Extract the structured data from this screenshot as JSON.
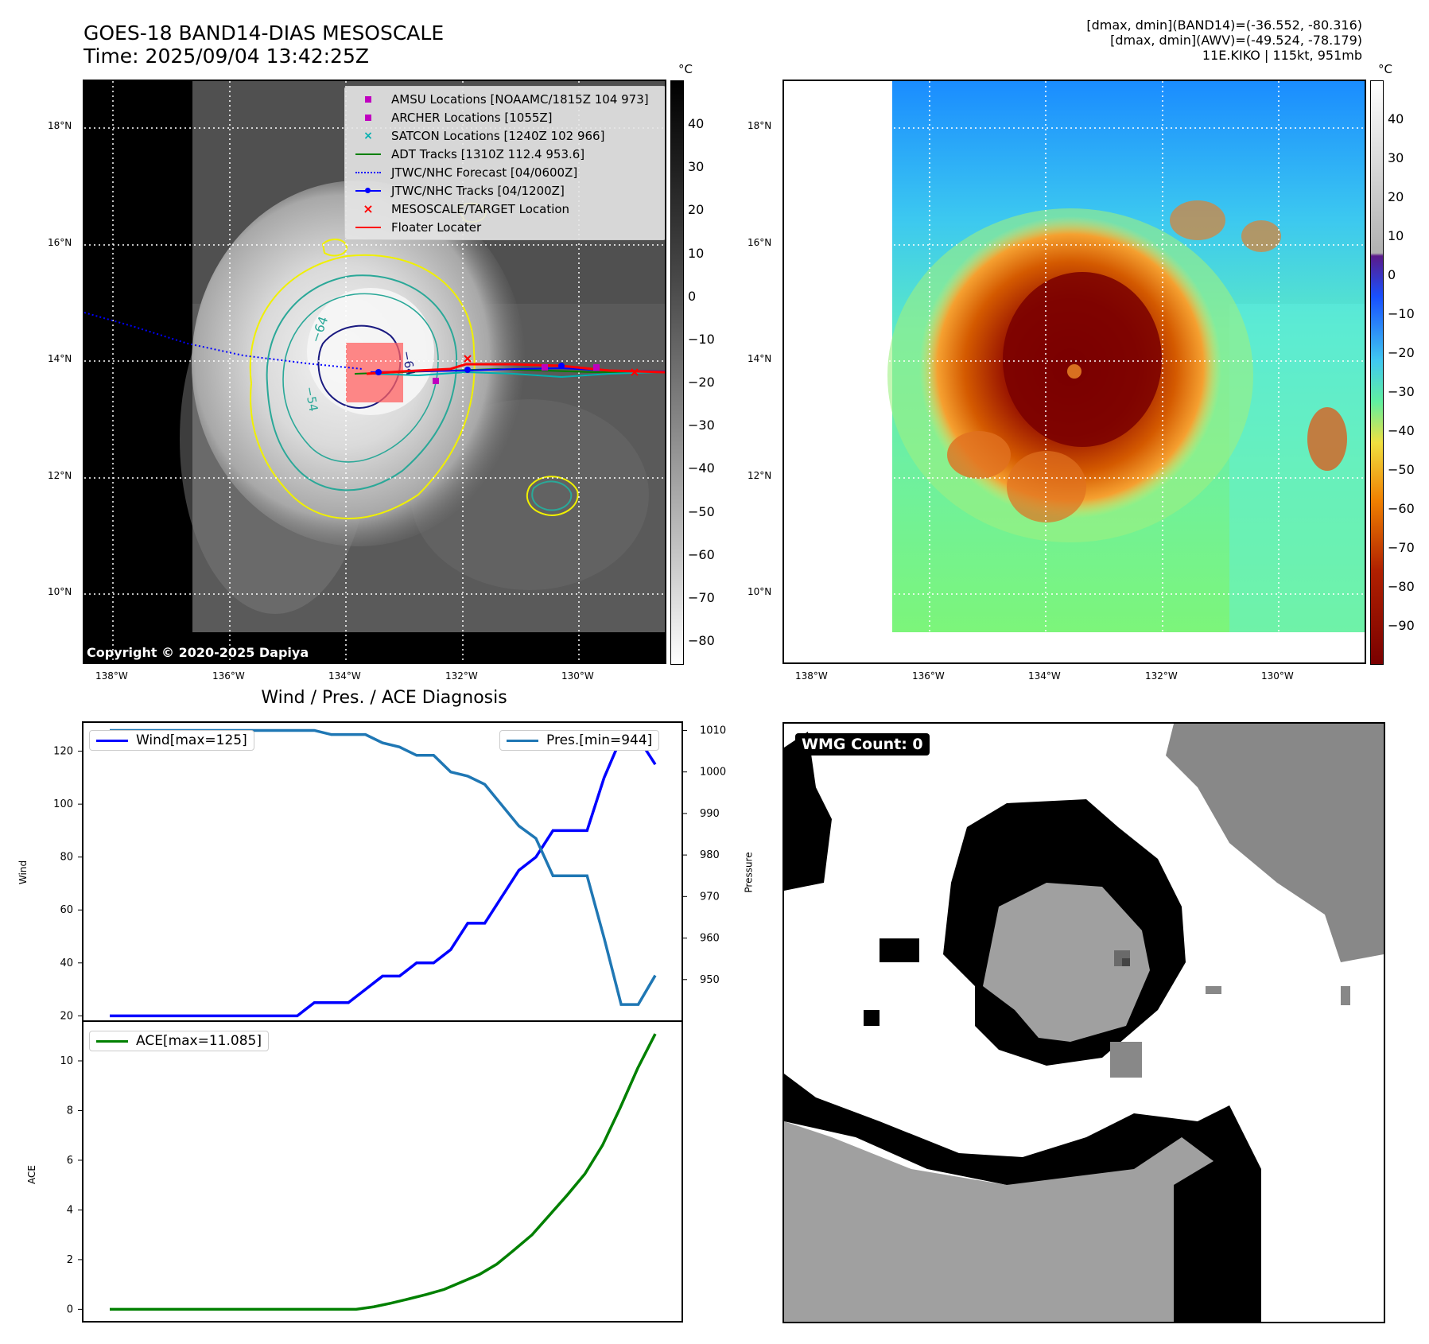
{
  "ir_panel": {
    "title_line1": "GOES-18 BAND14-DIAS MESOSCALE",
    "title_line2": "Time: 2025/09/04 13:42:25Z",
    "copyright": "Copyright © 2020-2025 Dapiya",
    "colorbar_unit": "°C",
    "colorbar_ticks": [
      "40",
      "30",
      "20",
      "10",
      "0",
      "−10",
      "−20",
      "−30",
      "−40",
      "−50",
      "−60",
      "−70",
      "−80"
    ],
    "lat_ticks": [
      "18°N",
      "16°N",
      "14°N",
      "12°N",
      "10°N"
    ],
    "lon_ticks": [
      "138°W",
      "136°W",
      "134°W",
      "132°W",
      "130°W"
    ],
    "contour_labels": [
      "−64",
      "−64",
      "−54"
    ],
    "legend": [
      {
        "label": "AMSU Locations [NOAAMC/1815Z 104 973]",
        "symbol": "square",
        "color": "#c000c0"
      },
      {
        "label": "ARCHER Locations [1055Z]",
        "symbol": "square",
        "color": "#c000c0"
      },
      {
        "label": "SATCON Locations [1240Z 102 966]",
        "symbol": "x",
        "color": "#00b0b0"
      },
      {
        "label": "ADT Tracks [1310Z 112.4 953.6]",
        "symbol": "line",
        "color": "#008000"
      },
      {
        "label": "JTWC/NHC Forecast [04/0600Z]",
        "symbol": "dotted",
        "color": "#0000ff"
      },
      {
        "label": "JTWC/NHC Tracks [04/1200Z]",
        "symbol": "dotline",
        "color": "#0000ff"
      },
      {
        "label": "MESOSCALE/TARGET Location",
        "symbol": "x",
        "color": "#ff0000"
      },
      {
        "label": "Floater Locater",
        "symbol": "line",
        "color": "#ff0000"
      }
    ]
  },
  "awv_panel": {
    "stats_line1": "[dmax, dmin](BAND14)=(-36.552, -80.316)",
    "stats_line2": "[dmax, dmin](AWV)=(-49.524, -78.179)",
    "stats_line3": "11E.KIKO | 115kt, 951mb",
    "colorbar_unit": "°C",
    "colorbar_ticks": [
      "40",
      "30",
      "20",
      "10",
      "0",
      "−10",
      "−20",
      "−30",
      "−40",
      "−50",
      "−60",
      "−70",
      "−80",
      "−90"
    ],
    "lat_ticks": [
      "18°N",
      "16°N",
      "14°N",
      "12°N",
      "10°N"
    ],
    "lon_ticks": [
      "138°W",
      "136°W",
      "134°W",
      "132°W",
      "130°W"
    ]
  },
  "wmg_panel": {
    "label": "WMG Count: 0"
  },
  "chart_data": [
    {
      "type": "line",
      "title": "Wind / Pres. / ACE Diagnosis",
      "ylabel": "Wind",
      "y2label": "Pressure",
      "ylim": [
        18,
        131
      ],
      "y2lim": [
        940,
        1012
      ],
      "yticks": [
        20,
        40,
        60,
        80,
        100,
        120
      ],
      "y2ticks": [
        950,
        960,
        970,
        980,
        990,
        1000,
        1010
      ],
      "series": [
        {
          "name": "Wind[max=125]",
          "axis": "left",
          "color": "#0000ff",
          "values": [
            20,
            20,
            20,
            20,
            20,
            20,
            20,
            20,
            20,
            20,
            20,
            20,
            25,
            25,
            25,
            30,
            35,
            35,
            40,
            40,
            45,
            55,
            55,
            65,
            75,
            80,
            90,
            90,
            90,
            110,
            125,
            125,
            115
          ]
        },
        {
          "name": "Pres.[min=944]",
          "axis": "right",
          "color": "#1f77b4",
          "values": [
            1010,
            1010,
            1010,
            1010,
            1010,
            1010,
            1010,
            1010,
            1010,
            1010,
            1010,
            1010,
            1010,
            1009,
            1009,
            1009,
            1007,
            1006,
            1004,
            1004,
            1000,
            999,
            997,
            992,
            987,
            984,
            975,
            975,
            975,
            960,
            944,
            944,
            951
          ]
        }
      ]
    },
    {
      "type": "line",
      "ylabel": "ACE",
      "ylim": [
        -0.5,
        11.6
      ],
      "yticks": [
        0,
        2,
        4,
        6,
        8,
        10
      ],
      "series": [
        {
          "name": "ACE[max=11.085]",
          "color": "#008000",
          "values": [
            0,
            0,
            0,
            0,
            0,
            0,
            0,
            0,
            0,
            0,
            0,
            0,
            0,
            0,
            0,
            0.1,
            0.25,
            0.42,
            0.6,
            0.8,
            1.1,
            1.4,
            1.82,
            2.4,
            3.0,
            3.8,
            4.6,
            5.45,
            6.6,
            8.1,
            9.7,
            11.085
          ]
        }
      ]
    }
  ]
}
